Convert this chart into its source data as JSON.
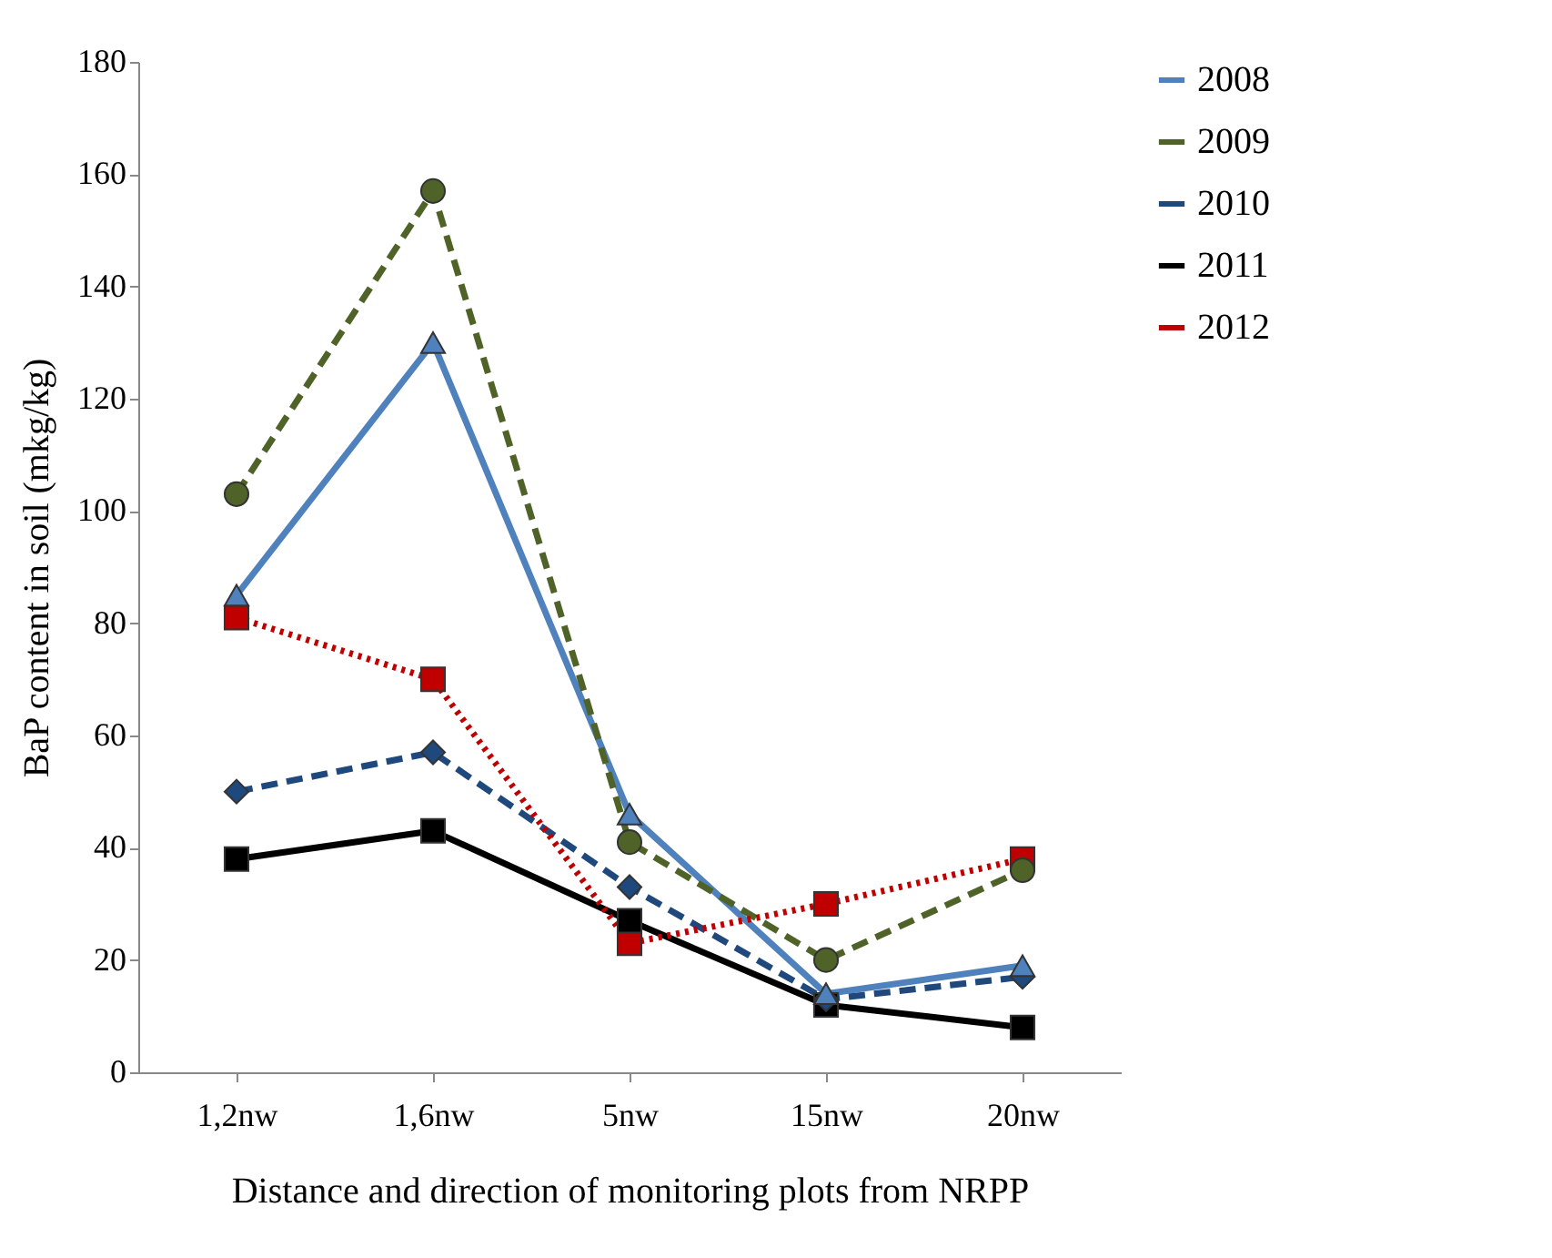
{
  "chart_data": {
    "type": "line",
    "xlabel": "Distance and direction of monitoring plots from NRPP",
    "ylabel": "BaP content in soil (mkg/kg)",
    "categories": [
      "1,2nw",
      "1,6nw",
      "5nw",
      "15nw",
      "20nw"
    ],
    "ylim": [
      0,
      180
    ],
    "yticks": [
      0,
      20,
      40,
      60,
      80,
      100,
      120,
      140,
      160,
      180
    ],
    "grid": false,
    "legend": "right",
    "series": [
      {
        "name": "2008",
        "color": "#4f81bd",
        "marker": "triangle",
        "line_style": "solid",
        "values": [
          85,
          130,
          46,
          14,
          19
        ]
      },
      {
        "name": "2009",
        "color": "#4f6228",
        "marker": "circle",
        "line_style": "dashed",
        "values": [
          103,
          157,
          41,
          20,
          36
        ]
      },
      {
        "name": "2010",
        "color": "#1f497d",
        "marker": "diamond",
        "line_style": "dashed",
        "values": [
          50,
          57,
          33,
          13,
          17
        ]
      },
      {
        "name": "2011",
        "color": "#000000",
        "marker": "square",
        "line_style": "solid",
        "values": [
          38,
          43,
          27,
          12,
          8
        ]
      },
      {
        "name": "2012",
        "color": "#c00000",
        "marker": "square",
        "line_style": "dotted",
        "values": [
          81,
          70,
          23,
          30,
          38
        ]
      }
    ]
  }
}
